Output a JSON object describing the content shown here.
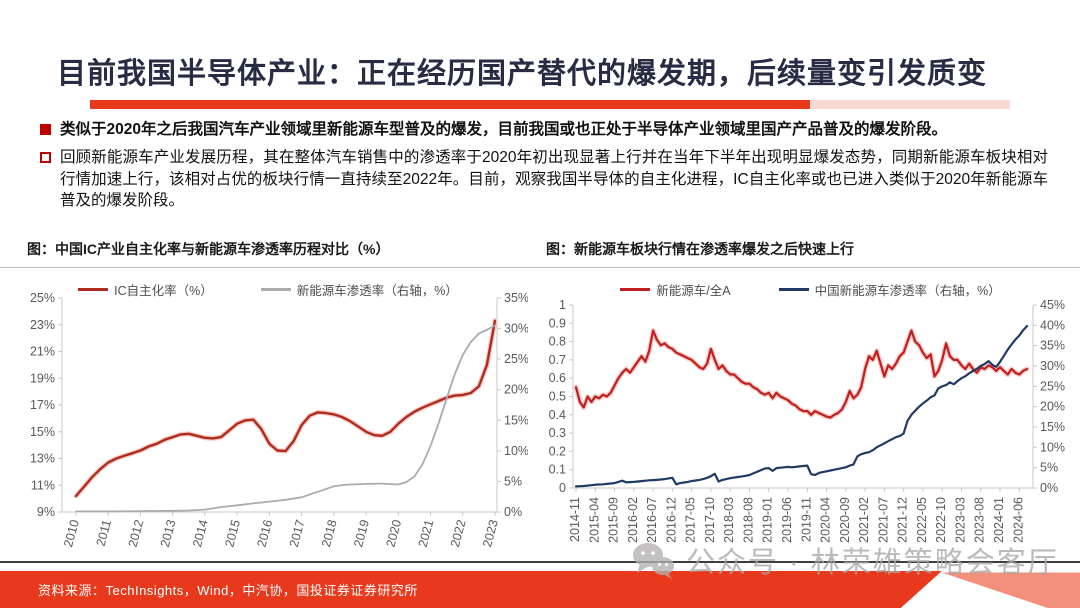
{
  "slide": {
    "title": "目前我国半导体产业：正在经历国产替代的爆发期，后续量变引发质变",
    "bullets": [
      {
        "marker": "filled-red-square",
        "text": "类似于2020年之后我国汽车产业领域里新能源车型普及的爆发，目前我国或也正处于半导体产业领域里国产产品普及的爆发阶段。"
      },
      {
        "marker": "hollow-red-square",
        "text": "回顾新能源车产业发展历程，其在整体汽车销售中的渗透率于2020年初出现显著上行并在当年下半年出现明显爆发态势，同期新能源车板块相对行情加速上行，该相对占优的板块行情一直持续至2022年。目前，观察我国半导体的自主化进程，IC自主化率或也已进入类似于2020年新能源车普及的爆发阶段。"
      }
    ],
    "source_note": "资料来源：TechInsights，Wind，中汽协，国投证券证券研究所",
    "watermark_text": "公众号 · 林荣雄策略会客厅",
    "colors": {
      "accent_red": "#e8391d",
      "accent_red_light": "#f2907b",
      "title_navy": "#272c44",
      "bullet_red": "#c00000",
      "footer_line": "#3d3d3d",
      "watermark_gray": "#a9a6a6"
    }
  },
  "chart_data": [
    {
      "type": "line",
      "title": "图：中国IC产业自主化率与新能源车渗透率历程对比（%）",
      "legend_position": "top",
      "grid": false,
      "x_domain": [
        2010,
        2023
      ],
      "x_tick_pos": [
        2010,
        2011,
        2012,
        2013,
        2014,
        2015,
        2016,
        2017,
        2018,
        2019,
        2020,
        2021,
        2022,
        2023
      ],
      "x_ticks": [
        "2010",
        "2011",
        "2012",
        "2013",
        "2014",
        "2015",
        "2016",
        "2017",
        "2018",
        "2019",
        "2020",
        "2021",
        "2022",
        "2023"
      ],
      "left_axis": {
        "min": 9,
        "max": 25,
        "ticks": [
          "25%",
          "23%",
          "21%",
          "19%",
          "17%",
          "15%",
          "13%",
          "11%",
          "9%"
        ]
      },
      "right_axis": {
        "min": 0,
        "max": 35,
        "ticks": [
          "35%",
          "30%",
          "25%",
          "20%",
          "15%",
          "10%",
          "5%",
          "0%"
        ]
      },
      "series": [
        {
          "name": "IC自主化率（%）",
          "axis": "left",
          "color": "#b02a1e",
          "halo": "#f4c3bb",
          "width": 2.4,
          "x_step": 0.25,
          "y": [
            10.2,
            10.9,
            11.6,
            12.2,
            12.7,
            13.0,
            13.2,
            13.4,
            13.6,
            13.9,
            14.1,
            14.4,
            14.6,
            14.8,
            14.85,
            14.7,
            14.55,
            14.5,
            14.6,
            15.1,
            15.6,
            15.85,
            15.9,
            15.2,
            14.1,
            13.6,
            13.55,
            14.3,
            15.5,
            16.2,
            16.45,
            16.4,
            16.3,
            16.1,
            15.8,
            15.4,
            15.0,
            14.75,
            14.7,
            15.0,
            15.6,
            16.1,
            16.5,
            16.8,
            17.05,
            17.3,
            17.55,
            17.7,
            17.75,
            17.9,
            18.4,
            20.0,
            23.3
          ]
        },
        {
          "name": "新能源车渗透率（右轴，%）",
          "axis": "right",
          "color": "#ababab",
          "width": 1.8,
          "x": [
            2010,
            2011,
            2012,
            2013,
            2013.5,
            2014,
            2014.5,
            2015,
            2015.5,
            2016,
            2016.5,
            2017,
            2017.5,
            2018,
            2018.25,
            2018.5,
            2019,
            2019.5,
            2020,
            2020.25,
            2020.5,
            2020.75,
            2021,
            2021.25,
            2021.5,
            2021.75,
            2022,
            2022.25,
            2022.5,
            2022.75,
            2023
          ],
          "y": [
            0.1,
            0.1,
            0.15,
            0.2,
            0.25,
            0.4,
            0.8,
            1.1,
            1.4,
            1.7,
            2.0,
            2.4,
            3.3,
            4.2,
            4.4,
            4.5,
            4.6,
            4.65,
            4.5,
            4.9,
            5.8,
            7.8,
            10.8,
            14.5,
            18.6,
            22.5,
            25.7,
            27.8,
            29.2,
            29.8,
            30.5
          ]
        }
      ]
    },
    {
      "type": "line",
      "title": "图：新能源车板块行情在渗透率爆发之后快速上行",
      "legend_position": "top",
      "grid": false,
      "x_domain": [
        0,
        117
      ],
      "x_unit": "months from 2014-11",
      "x_tick_pos": [
        0,
        5,
        10,
        15,
        20,
        25,
        30,
        35,
        40,
        45,
        50,
        55,
        60,
        65,
        70,
        75,
        80,
        85,
        90,
        95,
        100,
        105,
        110,
        115
      ],
      "x_ticks": [
        "2014-11",
        "2015-04",
        "2015-09",
        "2016-02",
        "2016-07",
        "2016-12",
        "2017-05",
        "2017-10",
        "2018-03",
        "2018-08",
        "2019-01",
        "2019-06",
        "2019-11",
        "2020-04",
        "2020-09",
        "2021-02",
        "2021-07",
        "2021-12",
        "2022-05",
        "2022-10",
        "2023-03",
        "2023-08",
        "2024-01",
        "2024-06"
      ],
      "left_axis": {
        "min": 0,
        "max": 1,
        "ticks": [
          "1",
          "0.9",
          "0.8",
          "0.7",
          "0.6",
          "0.5",
          "0.4",
          "0.3",
          "0.2",
          "0.1",
          "0"
        ]
      },
      "right_axis": {
        "min": 0,
        "max": 45,
        "ticks": [
          "45%",
          "40%",
          "35%",
          "30%",
          "25%",
          "20%",
          "15%",
          "10%",
          "5%",
          "0%"
        ]
      },
      "series": [
        {
          "name": "新能源车/全A",
          "axis": "left",
          "color": "#c01e20",
          "halo": "#f4c3bb",
          "width": 2.2,
          "x_step": 1,
          "y": [
            0.55,
            0.47,
            0.44,
            0.5,
            0.47,
            0.5,
            0.49,
            0.51,
            0.5,
            0.52,
            0.56,
            0.6,
            0.63,
            0.65,
            0.63,
            0.66,
            0.69,
            0.72,
            0.69,
            0.75,
            0.86,
            0.81,
            0.78,
            0.79,
            0.77,
            0.76,
            0.74,
            0.73,
            0.72,
            0.71,
            0.7,
            0.68,
            0.66,
            0.65,
            0.68,
            0.76,
            0.7,
            0.65,
            0.67,
            0.64,
            0.62,
            0.62,
            0.6,
            0.58,
            0.57,
            0.57,
            0.55,
            0.54,
            0.52,
            0.51,
            0.52,
            0.49,
            0.52,
            0.5,
            0.49,
            0.48,
            0.46,
            0.45,
            0.43,
            0.42,
            0.42,
            0.4,
            0.42,
            0.41,
            0.4,
            0.39,
            0.385,
            0.4,
            0.41,
            0.43,
            0.47,
            0.53,
            0.49,
            0.51,
            0.55,
            0.65,
            0.72,
            0.7,
            0.75,
            0.68,
            0.61,
            0.67,
            0.65,
            0.68,
            0.72,
            0.74,
            0.8,
            0.86,
            0.8,
            0.78,
            0.74,
            0.71,
            0.73,
            0.61,
            0.64,
            0.7,
            0.79,
            0.72,
            0.7,
            0.7,
            0.67,
            0.65,
            0.68,
            0.65,
            0.63,
            0.66,
            0.65,
            0.67,
            0.66,
            0.64,
            0.66,
            0.64,
            0.62,
            0.65,
            0.63,
            0.62,
            0.64,
            0.65
          ]
        },
        {
          "name": "中国新能源车渗透率（右轴，%）",
          "axis": "right",
          "color": "#1f3a64",
          "width": 2.2,
          "x_step": 1,
          "y": [
            0.4,
            0.45,
            0.5,
            0.6,
            0.7,
            0.8,
            0.85,
            0.9,
            1.0,
            1.1,
            1.2,
            1.5,
            1.8,
            1.4,
            1.45,
            1.5,
            1.6,
            1.7,
            1.8,
            1.9,
            1.95,
            2.0,
            2.1,
            2.2,
            2.35,
            2.5,
            0.9,
            1.2,
            1.35,
            1.5,
            1.7,
            1.85,
            2.0,
            2.2,
            2.5,
            2.9,
            3.5,
            1.6,
            2.0,
            2.2,
            2.4,
            2.55,
            2.7,
            2.85,
            3.0,
            3.2,
            3.6,
            4.0,
            4.4,
            4.8,
            4.9,
            4.2,
            4.9,
            5.0,
            5.1,
            5.2,
            5.1,
            5.2,
            5.3,
            5.4,
            5.5,
            3.4,
            3.2,
            3.7,
            3.9,
            4.1,
            4.3,
            4.5,
            4.7,
            4.9,
            5.1,
            5.5,
            5.8,
            7.8,
            8.3,
            8.6,
            8.8,
            9.3,
            10.0,
            10.5,
            11.0,
            11.5,
            12.0,
            12.5,
            12.8,
            13.4,
            16.5,
            18.0,
            19.0,
            20.0,
            20.8,
            21.5,
            22.3,
            22.8,
            24.5,
            25.0,
            25.3,
            26.0,
            25.5,
            26.3,
            27.0,
            27.5,
            28.2,
            28.8,
            29.3,
            30.0,
            30.5,
            31.2,
            30.3,
            29.8,
            31.0,
            32.5,
            34.0,
            35.3,
            36.5,
            37.5,
            38.8,
            39.8
          ]
        }
      ]
    }
  ]
}
